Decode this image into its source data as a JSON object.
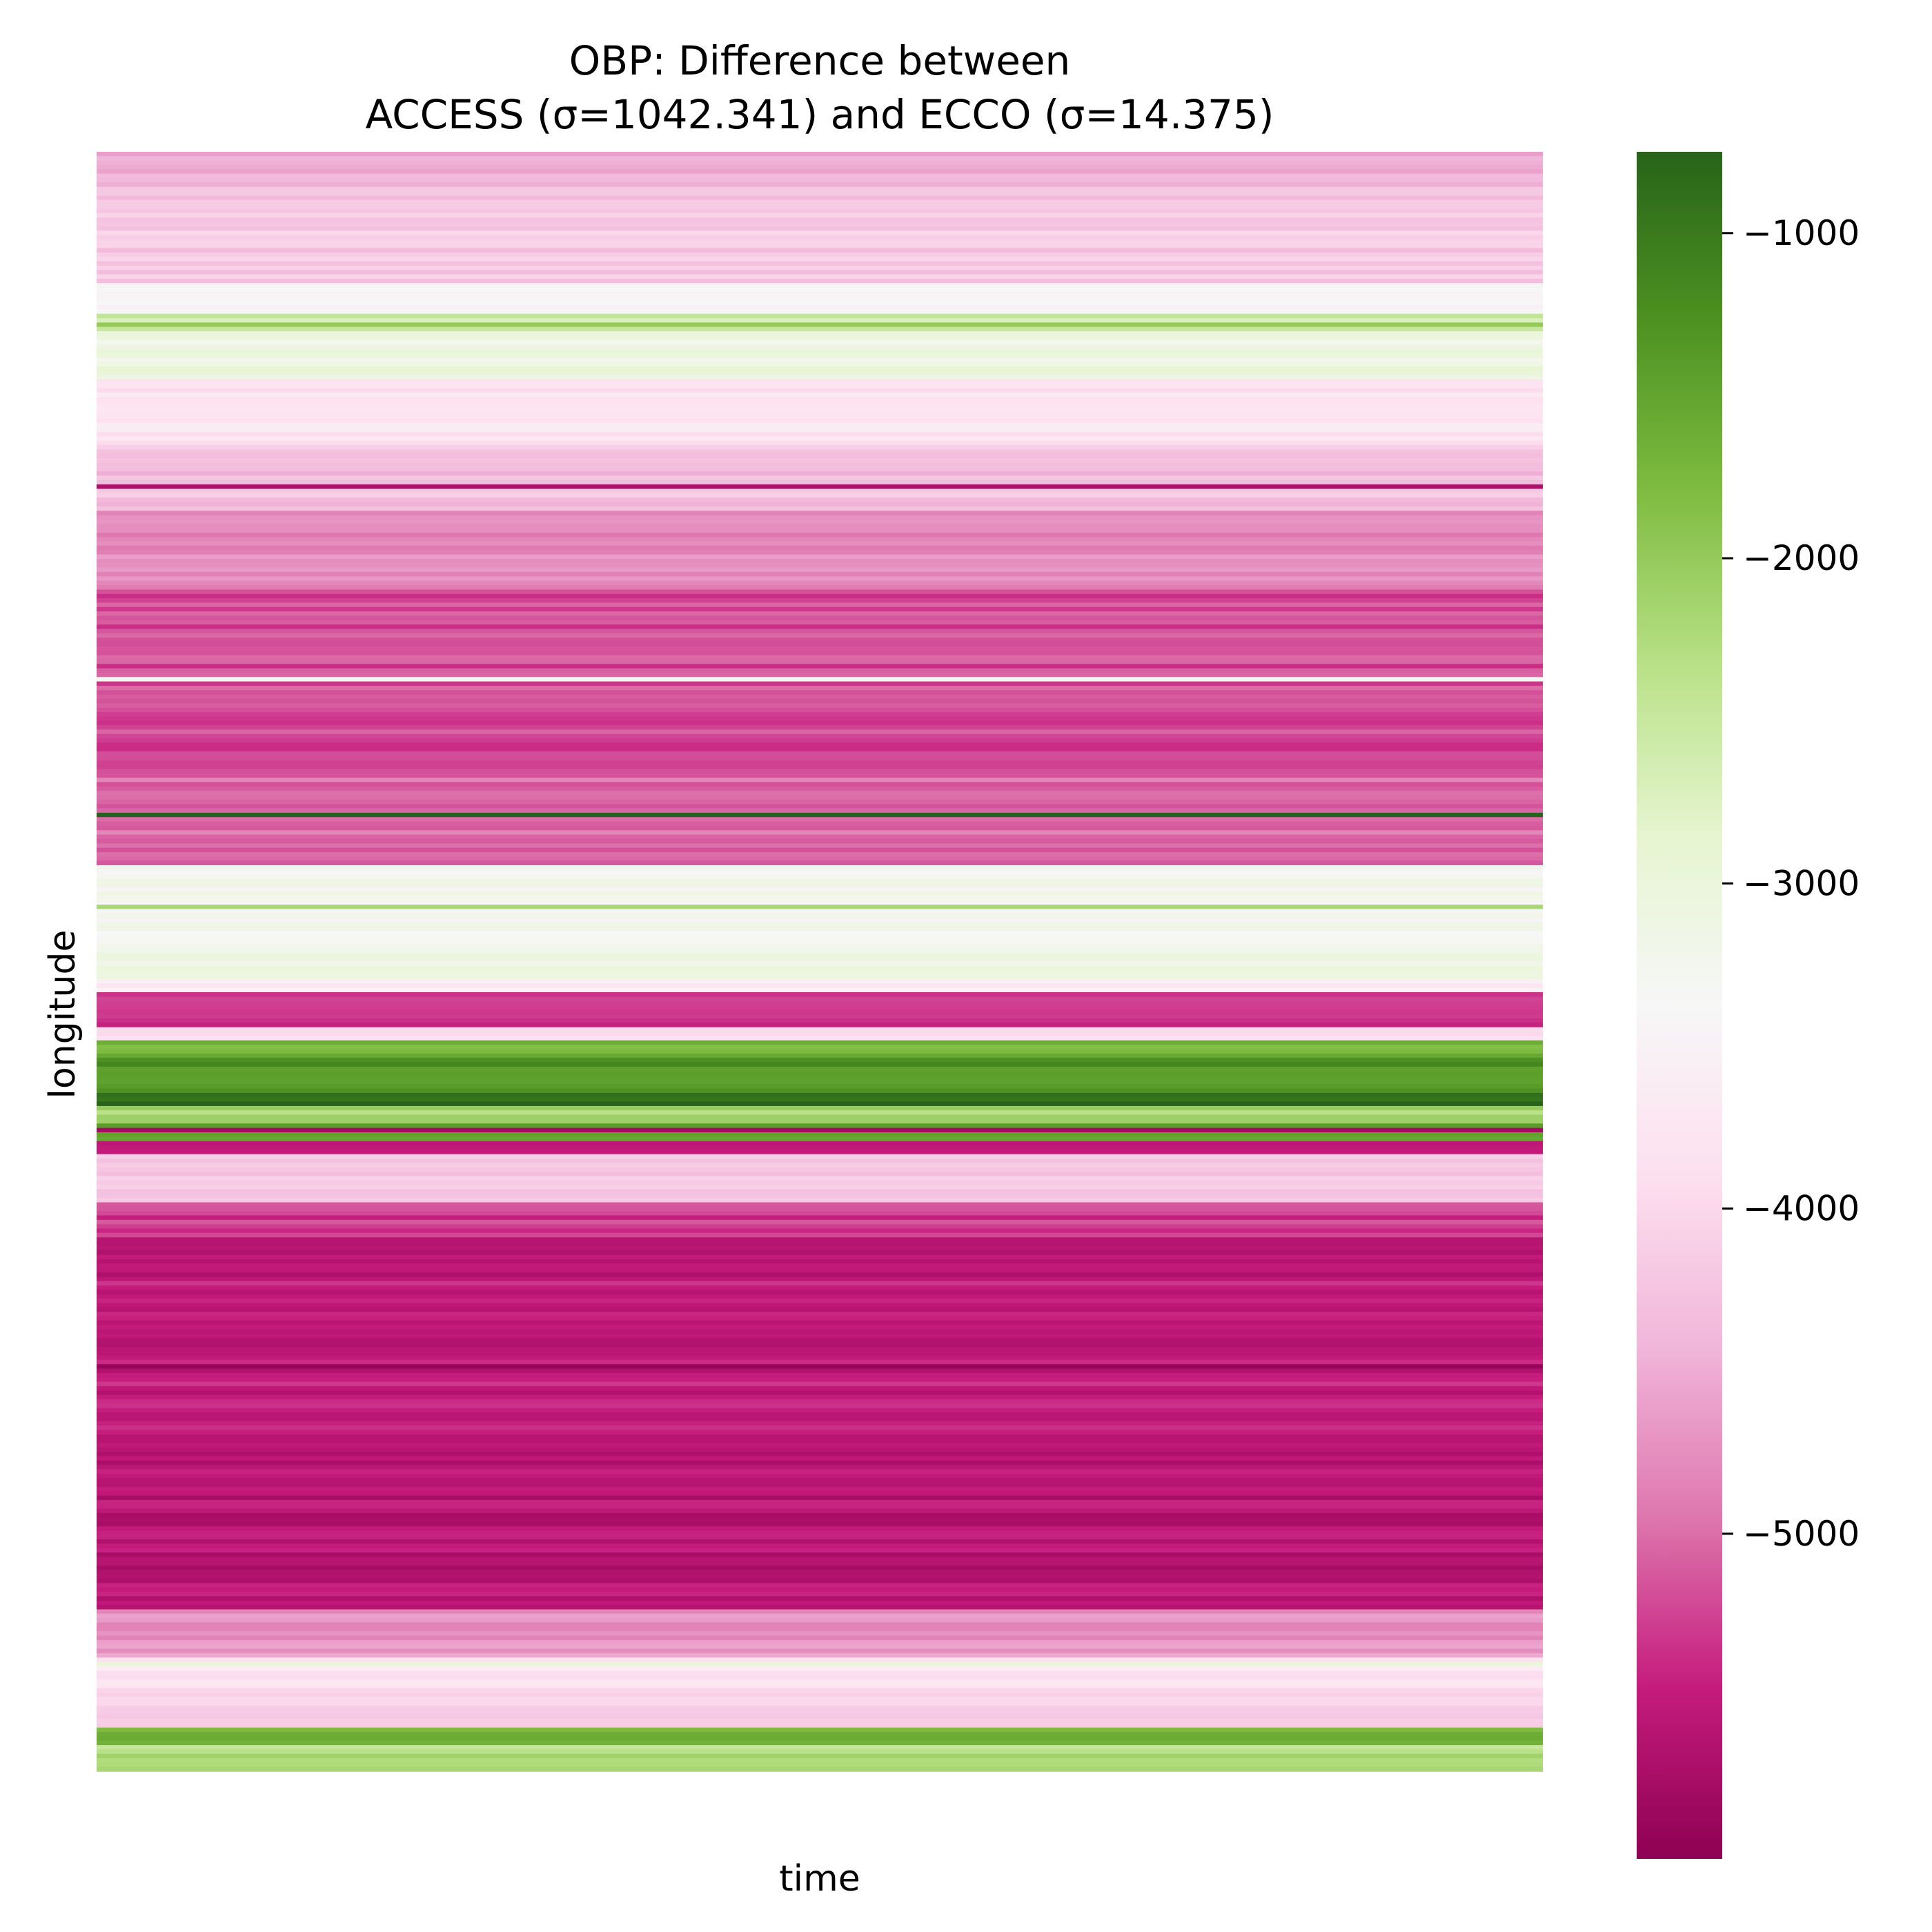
{
  "chart_data": {
    "type": "heatmap",
    "title_line1": "OBP: Difference between",
    "title_line2": "ACCESS (σ=1042.341) and ECCO (σ=14.375)",
    "xlabel": "time",
    "ylabel": "longitude",
    "orientation": "rows = longitude bands, constant along time",
    "colormap": "PiYG",
    "colorbar": {
      "vmin": -6000,
      "vmax": -750,
      "ticks": [
        -1000,
        -2000,
        -3000,
        -4000,
        -5000
      ],
      "tick_labels": [
        "−1000",
        "−2000",
        "−3000",
        "−4000",
        "−5000"
      ]
    },
    "colormap_stops": [
      [
        0.0,
        "#8e0152"
      ],
      [
        0.1,
        "#c51b7d"
      ],
      [
        0.2,
        "#de77ae"
      ],
      [
        0.3,
        "#f1b6da"
      ],
      [
        0.4,
        "#fde0ef"
      ],
      [
        0.5,
        "#f7f7f7"
      ],
      [
        0.6,
        "#e6f5d0"
      ],
      [
        0.7,
        "#b8e186"
      ],
      [
        0.8,
        "#7fbc41"
      ],
      [
        0.9,
        "#4d9221"
      ],
      [
        1.0,
        "#276419"
      ]
    ],
    "row_profile": {
      "n_rows": 390,
      "data_rows": 370,
      "segments": [
        {
          "to": 0.02,
          "value": -4500
        },
        {
          "to": 0.08,
          "value": -4200
        },
        {
          "to": 0.1,
          "value": -3400
        },
        {
          "to": 0.11,
          "value": -2600
        },
        {
          "to": 0.14,
          "value": -3100
        },
        {
          "to": 0.18,
          "value": -3800
        },
        {
          "to": 0.22,
          "value": -4300
        },
        {
          "to": 0.27,
          "value": -4800
        },
        {
          "to": 0.38,
          "value": -5200
        },
        {
          "to": 0.44,
          "value": -5000
        },
        {
          "to": 0.49,
          "value": -3300
        },
        {
          "to": 0.51,
          "value": -3100
        },
        {
          "to": 0.52,
          "value": -3600
        },
        {
          "to": 0.54,
          "value": -5400
        },
        {
          "to": 0.55,
          "value": -4000
        },
        {
          "to": 0.56,
          "value": -1700
        },
        {
          "to": 0.58,
          "value": -1300
        },
        {
          "to": 0.59,
          "value": -900
        },
        {
          "to": 0.6,
          "value": -2200
        },
        {
          "to": 0.61,
          "value": -1600
        },
        {
          "to": 0.62,
          "value": -5500
        },
        {
          "to": 0.65,
          "value": -4200
        },
        {
          "to": 0.67,
          "value": -5300
        },
        {
          "to": 0.8,
          "value": -5500
        },
        {
          "to": 0.9,
          "value": -5600
        },
        {
          "to": 0.93,
          "value": -4700
        },
        {
          "to": 0.95,
          "value": -3800
        },
        {
          "to": 0.975,
          "value": -4100
        },
        {
          "to": 0.985,
          "value": -1700
        },
        {
          "to": 1.0,
          "value": -2300
        }
      ],
      "special_rows": [
        {
          "pos": 0.107,
          "value": -2000
        },
        {
          "pos": 0.206,
          "value": -5700
        },
        {
          "pos": 0.325,
          "value": -3300
        },
        {
          "pos": 0.41,
          "value": -600
        },
        {
          "pos": 0.466,
          "value": -2200
        },
        {
          "pos": 0.589,
          "value": -700
        },
        {
          "pos": 0.603,
          "value": -5800
        },
        {
          "pos": 0.75,
          "value": -5900
        },
        {
          "pos": 0.934,
          "value": -3000
        }
      ]
    }
  }
}
